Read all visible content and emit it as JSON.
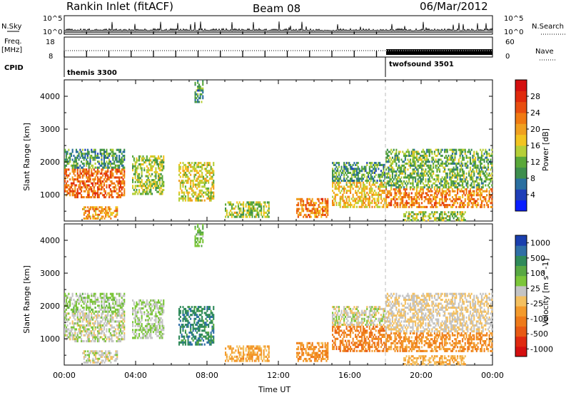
{
  "header": {
    "station": "Rankin Inlet (fitACF)",
    "beam": "Beam 08",
    "date": "06/Mar/2012"
  },
  "top_panel": {
    "nsky_label": "N.Sky",
    "nsearch_label": "N.Search",
    "freq_label": "Freq.",
    "freq_unit": "[MHz]",
    "nave_label": "Nave",
    "cpid_label": "CPID",
    "left_ticks_noise": [
      "10^5",
      "10^0"
    ],
    "right_ticks_noise": [
      "10^5",
      "10^0"
    ],
    "left_ticks_freq": [
      "18",
      "8"
    ],
    "right_ticks_freq": [
      "60",
      "0"
    ],
    "cpid_segments": [
      {
        "start_hour": 0,
        "name": "themis 3300"
      },
      {
        "start_hour": 18,
        "name": "twofsound 3501"
      }
    ]
  },
  "chart_data": [
    {
      "type": "heatmap",
      "name": "power",
      "xlabel": "",
      "ylabel": "Slant Range [km]",
      "xlim": [
        0,
        24
      ],
      "ylim": [
        200,
        4500
      ],
      "yticks": [
        1000,
        2000,
        3000,
        4000
      ],
      "colorbar": {
        "label": "Power [dB]",
        "ticks": [
          28,
          24,
          20,
          16,
          12,
          8,
          4
        ],
        "colors": [
          "#0a1eff",
          "#1f3fb8",
          "#2a6fa0",
          "#3e8e4e",
          "#5aa83a",
          "#b6cf38",
          "#f2c421",
          "#f0a020",
          "#f07a12",
          "#e84e10",
          "#e02a0c",
          "#d40f0f"
        ]
      },
      "echo_regions": [
        {
          "t": [
            0.0,
            3.4
          ],
          "r": [
            900,
            1800
          ],
          "value": 24
        },
        {
          "t": [
            0.0,
            3.4
          ],
          "r": [
            1800,
            2400
          ],
          "value": 10
        },
        {
          "t": [
            3.8,
            5.6
          ],
          "r": [
            1000,
            2200
          ],
          "value": 14
        },
        {
          "t": [
            6.4,
            8.4
          ],
          "r": [
            800,
            2000
          ],
          "value": 16
        },
        {
          "t": [
            1.0,
            3.0
          ],
          "r": [
            250,
            650
          ],
          "value": 20
        },
        {
          "t": [
            9.0,
            11.5
          ],
          "r": [
            300,
            800
          ],
          "value": 14
        },
        {
          "t": [
            13.0,
            14.8
          ],
          "r": [
            300,
            900
          ],
          "value": 22
        },
        {
          "t": [
            15.0,
            18.0
          ],
          "r": [
            600,
            1400
          ],
          "value": 18
        },
        {
          "t": [
            15.0,
            18.0
          ],
          "r": [
            1400,
            2000
          ],
          "value": 10
        },
        {
          "t": [
            18.0,
            24.0
          ],
          "r": [
            600,
            1200
          ],
          "value": 22
        },
        {
          "t": [
            18.0,
            24.0
          ],
          "r": [
            1200,
            2400
          ],
          "value": 12
        },
        {
          "t": [
            19.0,
            22.5
          ],
          "r": [
            200,
            500
          ],
          "value": 14
        },
        {
          "t": [
            7.3,
            7.8
          ],
          "r": [
            3800,
            4500
          ],
          "value": 10
        }
      ]
    },
    {
      "type": "heatmap",
      "name": "velocity",
      "xlabel": "Time UT",
      "ylabel": "Slant Range [km]",
      "xlim": [
        0,
        24
      ],
      "ylim": [
        200,
        4500
      ],
      "xticks": [
        "00:00",
        "04:00",
        "08:00",
        "12:00",
        "16:00",
        "20:00",
        "00:00"
      ],
      "yticks": [
        1000,
        2000,
        3000,
        4000
      ],
      "colorbar": {
        "label": "Velocity [m s^-1]",
        "ticks": [
          "1000",
          "500",
          "100",
          "25",
          "-25",
          "-100",
          "-500",
          "-1000"
        ],
        "colors": [
          "#1a3fae",
          "#2f6fa6",
          "#2f8a5a",
          "#58a843",
          "#7cc63a",
          "#c4c4c4",
          "#f4c060",
          "#f39a2c",
          "#ee7a1a",
          "#e85a14",
          "#e02a10",
          "#d40f0f"
        ]
      },
      "echo_regions": [
        {
          "t": [
            0.0,
            3.4
          ],
          "r": [
            900,
            1800
          ],
          "value": 100
        },
        {
          "t": [
            0.0,
            3.4
          ],
          "r": [
            1800,
            2400
          ],
          "value": 200
        },
        {
          "t": [
            3.8,
            5.6
          ],
          "r": [
            1000,
            2200
          ],
          "value": 150
        },
        {
          "t": [
            6.4,
            8.4
          ],
          "r": [
            800,
            2000
          ],
          "value": 600
        },
        {
          "t": [
            1.0,
            3.0
          ],
          "r": [
            250,
            650
          ],
          "value": 60
        },
        {
          "t": [
            9.0,
            11.5
          ],
          "r": [
            300,
            800
          ],
          "value": -200
        },
        {
          "t": [
            13.0,
            14.8
          ],
          "r": [
            300,
            900
          ],
          "value": -300
        },
        {
          "t": [
            15.0,
            18.0
          ],
          "r": [
            600,
            1400
          ],
          "value": -400
        },
        {
          "t": [
            15.0,
            18.0
          ],
          "r": [
            1400,
            2000
          ],
          "value": 80
        },
        {
          "t": [
            18.0,
            24.0
          ],
          "r": [
            600,
            1200
          ],
          "value": -300
        },
        {
          "t": [
            18.0,
            24.0
          ],
          "r": [
            1200,
            2400
          ],
          "value": 0
        },
        {
          "t": [
            19.0,
            22.5
          ],
          "r": [
            200,
            500
          ],
          "value": -150
        },
        {
          "t": [
            7.3,
            7.8
          ],
          "r": [
            3800,
            4500
          ],
          "value": 300
        }
      ]
    }
  ]
}
